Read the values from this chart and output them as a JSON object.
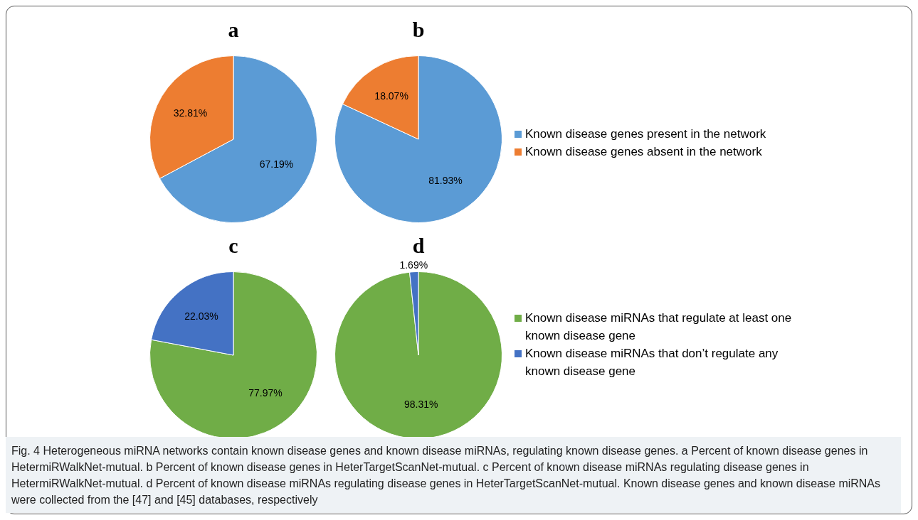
{
  "chart_data": [
    {
      "type": "pie",
      "title": "a",
      "categories": [
        "Known disease genes present in the network",
        "Known disease genes absent in the network"
      ],
      "values": [
        67.19,
        32.81
      ],
      "colors": [
        "#5b9bd5",
        "#ed7d31"
      ],
      "value_labels": [
        "67.19%",
        "32.81%"
      ],
      "legend": "right",
      "annotations": [
        "Fig. 4 Heterogeneous miRNA networks contain known disease genes and known disease miRNAs, regulating known disease genes. a Percent of known disease genes in HetermiRWalkNet-mutual. b Percent of known disease genes in HeterTargetScanNet-mutual. c Percent of known disease miRNAs regulating disease genes in HetermiRWalkNet-mutual. d Percent of known disease miRNAs regulating disease genes in HeterTargetScanNet-mutual. Known disease genes and known disease miRNAs were collected from the [47] and [45] databases, respectively"
      ]
    },
    {
      "type": "pie",
      "title": "b",
      "categories": [
        null,
        null
      ],
      "values": [
        81.93,
        18.07
      ],
      "colors": [
        "#5b9bd5",
        "#ed7d31"
      ],
      "value_labels": [
        "81.93%",
        "18.07%"
      ]
    },
    {
      "type": "pie",
      "title": "c",
      "categories": [
        "Known disease miRNAs that regulate at least one known disease gene",
        "Known disease miRNAs that don’t regulate any known disease gene"
      ],
      "values": [
        77.97,
        22.03
      ],
      "colors": [
        "#70ad47",
        "#4472c4"
      ],
      "value_labels": [
        "77.97%",
        "22.03%"
      ],
      "legend": "right"
    },
    {
      "type": "pie",
      "title": "d",
      "categories": [
        null,
        null
      ],
      "values": [
        98.31,
        1.69
      ],
      "colors": [
        "#70ad47",
        "#4472c4"
      ],
      "value_labels": [
        "98.31%",
        "1.69%"
      ]
    }
  ]
}
